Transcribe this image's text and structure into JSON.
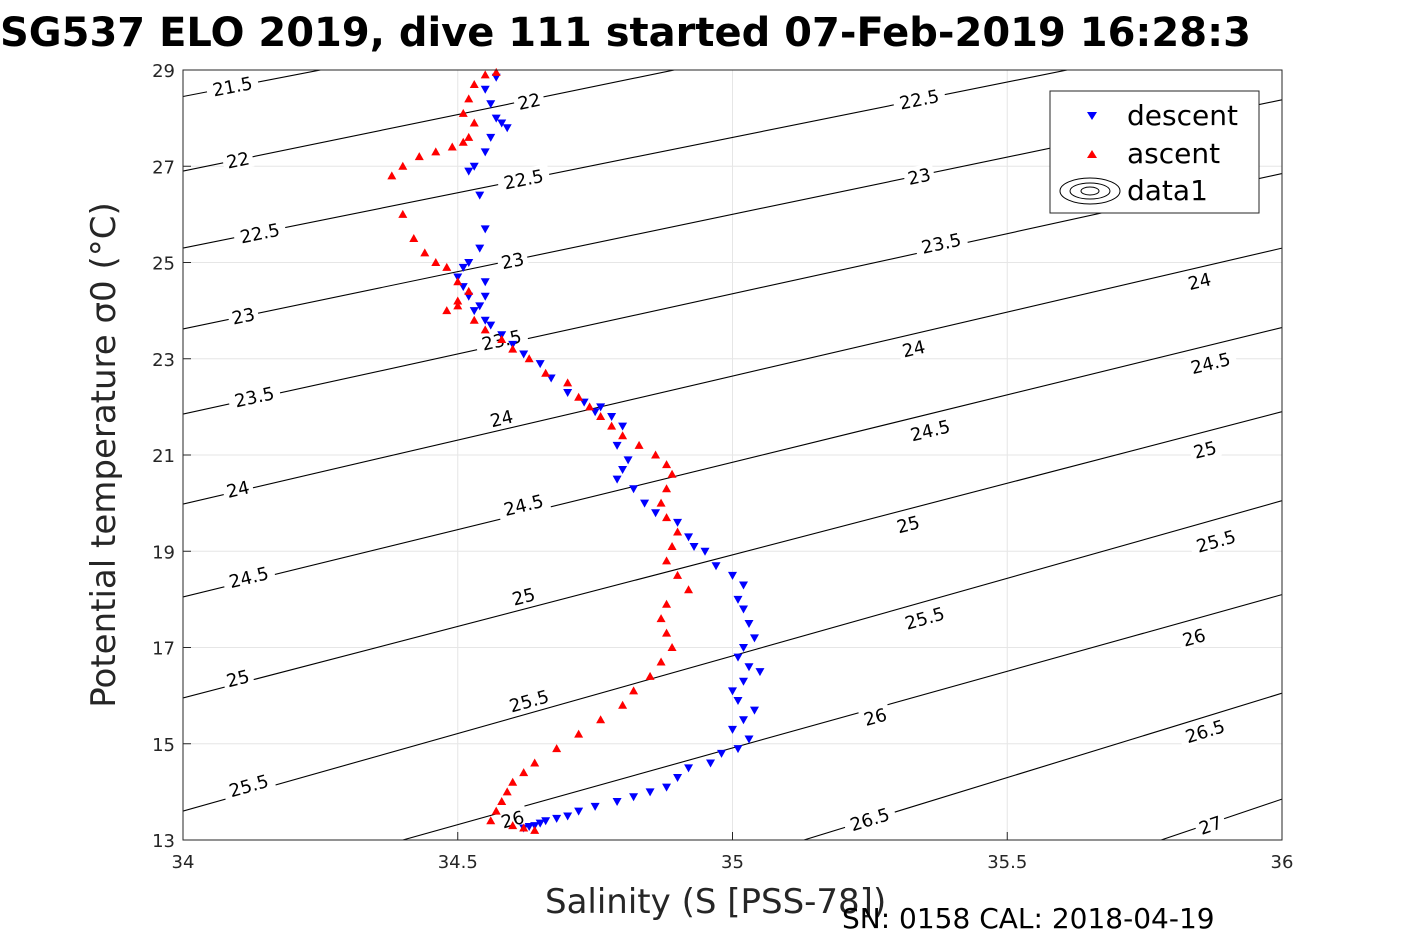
{
  "title": "SG537 ELO 2019, dive 111 started 07-Feb-2019 16:28:3",
  "footer": "SN: 0158  CAL: 2018-04-19",
  "chart_data": {
    "type": "scatter",
    "title": "SG537 ELO 2019, dive 111 started 07-Feb-2019 16:28:3",
    "xlabel": "Salinity (S [PSS-78])",
    "ylabel": "Potential temperature σ0 (°C)",
    "xlim": [
      34,
      36
    ],
    "ylim": [
      13,
      29
    ],
    "xticks": [
      "34",
      "34.5",
      "35",
      "35.5",
      "36"
    ],
    "yticks": [
      "13",
      "15",
      "17",
      "19",
      "21",
      "23",
      "25",
      "27",
      "29"
    ],
    "grid": true,
    "legend_placement": "top-right",
    "legend": [
      "descent",
      "ascent",
      "data1"
    ],
    "colors": {
      "descent": "#0000ff",
      "ascent": "#ff0000",
      "contour": "#000000"
    },
    "contours": [
      {
        "level": "21.5",
        "points": [
          [
            34.0,
            28.45
          ],
          [
            34.5,
            29.55
          ]
        ],
        "labels": [
          {
            "x": 34.09,
            "y": 28.65
          }
        ]
      },
      {
        "level": "22",
        "points": [
          [
            34.0,
            26.9
          ],
          [
            35.0,
            29.25
          ]
        ],
        "labels": [
          {
            "x": 34.1,
            "y": 27.12
          },
          {
            "x": 34.63,
            "y": 28.34
          }
        ]
      },
      {
        "level": "22.5",
        "points": [
          [
            34.0,
            25.3
          ],
          [
            36.0,
            29.9
          ]
        ],
        "labels": [
          {
            "x": 34.14,
            "y": 25.6
          },
          {
            "x": 34.62,
            "y": 26.72
          },
          {
            "x": 35.34,
            "y": 28.38
          }
        ]
      },
      {
        "level": "23",
        "points": [
          [
            34.0,
            23.62
          ],
          [
            36.0,
            28.38
          ]
        ],
        "labels": [
          {
            "x": 34.11,
            "y": 23.88
          },
          {
            "x": 34.6,
            "y": 25.03
          },
          {
            "x": 35.34,
            "y": 26.78
          }
        ]
      },
      {
        "level": "23.5",
        "points": [
          [
            34.0,
            21.85
          ],
          [
            36.0,
            26.85
          ]
        ],
        "labels": [
          {
            "x": 34.13,
            "y": 22.2
          },
          {
            "x": 34.58,
            "y": 23.38
          },
          {
            "x": 35.38,
            "y": 25.39
          }
        ]
      },
      {
        "level": "24",
        "points": [
          [
            34.0,
            19.98
          ],
          [
            36.0,
            25.3
          ]
        ],
        "labels": [
          {
            "x": 34.1,
            "y": 20.28
          },
          {
            "x": 34.58,
            "y": 21.75
          },
          {
            "x": 35.33,
            "y": 23.2
          },
          {
            "x": 35.85,
            "y": 24.6
          }
        ]
      },
      {
        "level": "24.5",
        "points": [
          [
            34.0,
            18.05
          ],
          [
            36.0,
            23.65
          ]
        ],
        "labels": [
          {
            "x": 34.12,
            "y": 18.45
          },
          {
            "x": 34.62,
            "y": 19.95
          },
          {
            "x": 35.36,
            "y": 21.5
          },
          {
            "x": 35.87,
            "y": 22.9
          }
        ]
      },
      {
        "level": "25",
        "points": [
          [
            34.0,
            15.95
          ],
          [
            36.0,
            21.9
          ]
        ],
        "labels": [
          {
            "x": 34.1,
            "y": 16.35
          },
          {
            "x": 34.62,
            "y": 18.05
          },
          {
            "x": 35.32,
            "y": 19.55
          },
          {
            "x": 35.86,
            "y": 21.1
          }
        ]
      },
      {
        "level": "25.5",
        "points": [
          [
            34.0,
            13.6
          ],
          [
            36.0,
            20.05
          ]
        ],
        "labels": [
          {
            "x": 34.12,
            "y": 14.12
          },
          {
            "x": 34.63,
            "y": 15.88
          },
          {
            "x": 35.35,
            "y": 17.6
          },
          {
            "x": 35.88,
            "y": 19.2
          }
        ]
      },
      {
        "level": "26",
        "points": [
          [
            34.4,
            13.0
          ],
          [
            36.0,
            18.1
          ]
        ],
        "labels": [
          {
            "x": 34.6,
            "y": 13.42
          },
          {
            "x": 35.26,
            "y": 15.55
          },
          {
            "x": 35.84,
            "y": 17.2
          }
        ]
      },
      {
        "level": "26.5",
        "points": [
          [
            35.13,
            13.0
          ],
          [
            36.0,
            16.05
          ]
        ],
        "labels": [
          {
            "x": 35.25,
            "y": 13.42
          },
          {
            "x": 35.86,
            "y": 15.25
          }
        ]
      },
      {
        "level": "27",
        "points": [
          [
            35.78,
            13.0
          ],
          [
            36.0,
            13.85
          ]
        ],
        "labels": [
          {
            "x": 35.87,
            "y": 13.3
          }
        ]
      }
    ],
    "series": [
      {
        "name": "descent",
        "marker": "triangle-down",
        "color": "#0000ff",
        "x": [
          34.57,
          34.55,
          34.56,
          34.57,
          34.58,
          34.56,
          34.59,
          34.55,
          34.53,
          34.52,
          34.54,
          34.55,
          34.54,
          34.52,
          34.51,
          34.5,
          34.51,
          34.52,
          34.55,
          34.55,
          34.54,
          34.53,
          34.55,
          34.56,
          34.58,
          34.6,
          34.62,
          34.65,
          34.67,
          34.7,
          34.73,
          34.75,
          34.76,
          34.78,
          34.8,
          34.79,
          34.81,
          34.8,
          34.79,
          34.82,
          34.84,
          34.86,
          34.9,
          34.92,
          34.93,
          34.95,
          34.97,
          35.0,
          35.02,
          35.01,
          35.02,
          35.03,
          35.04,
          35.02,
          35.01,
          35.03,
          35.05,
          35.02,
          35.0,
          35.01,
          35.04,
          35.02,
          35.0,
          35.03,
          35.01,
          34.98,
          34.96,
          34.92,
          34.9,
          34.88,
          34.85,
          34.82,
          34.79,
          34.75,
          34.72,
          34.7,
          34.68,
          34.66,
          34.65,
          34.64,
          34.63,
          34.62
        ],
        "y": [
          28.85,
          28.6,
          28.3,
          28.0,
          27.9,
          27.6,
          27.8,
          27.3,
          27.0,
          26.9,
          26.4,
          25.7,
          25.3,
          25.0,
          24.9,
          24.7,
          24.5,
          24.3,
          24.6,
          24.3,
          24.1,
          24.0,
          23.8,
          23.7,
          23.5,
          23.3,
          23.1,
          22.9,
          22.6,
          22.3,
          22.1,
          21.9,
          22.0,
          21.8,
          21.6,
          21.2,
          20.9,
          20.7,
          20.5,
          20.3,
          20.0,
          19.8,
          19.6,
          19.3,
          19.1,
          19.0,
          18.7,
          18.5,
          18.3,
          18.0,
          17.8,
          17.5,
          17.2,
          17.0,
          16.8,
          16.6,
          16.5,
          16.3,
          16.1,
          15.9,
          15.7,
          15.5,
          15.3,
          15.1,
          14.9,
          14.8,
          14.6,
          14.5,
          14.3,
          14.1,
          14.0,
          13.9,
          13.8,
          13.7,
          13.6,
          13.5,
          13.45,
          13.4,
          13.35,
          13.3,
          13.28,
          13.25
        ]
      },
      {
        "name": "ascent",
        "marker": "triangle-up",
        "color": "#ff0000",
        "x": [
          34.57,
          34.55,
          34.53,
          34.52,
          34.51,
          34.53,
          34.52,
          34.51,
          34.49,
          34.46,
          34.43,
          34.4,
          34.38,
          34.4,
          34.42,
          34.44,
          34.46,
          34.48,
          34.5,
          34.52,
          34.5,
          34.48,
          34.5,
          34.53,
          34.55,
          34.58,
          34.6,
          34.63,
          34.66,
          34.7,
          34.72,
          34.74,
          34.76,
          34.78,
          34.8,
          34.83,
          34.86,
          34.88,
          34.89,
          34.88,
          34.87,
          34.88,
          34.9,
          34.89,
          34.88,
          34.9,
          34.92,
          34.88,
          34.87,
          34.88,
          34.89,
          34.87,
          34.85,
          34.82,
          34.8,
          34.76,
          34.72,
          34.68,
          34.64,
          34.62,
          34.6,
          34.59,
          34.58,
          34.57,
          34.56,
          34.6,
          34.62,
          34.64
        ],
        "y": [
          28.95,
          28.9,
          28.7,
          28.4,
          28.1,
          27.9,
          27.6,
          27.5,
          27.4,
          27.3,
          27.2,
          27.0,
          26.8,
          26.0,
          25.5,
          25.2,
          25.0,
          24.9,
          24.6,
          24.4,
          24.2,
          24.0,
          24.1,
          23.8,
          23.6,
          23.4,
          23.2,
          23.0,
          22.7,
          22.5,
          22.2,
          22.0,
          21.8,
          21.6,
          21.4,
          21.2,
          21.0,
          20.8,
          20.6,
          20.3,
          20.0,
          19.7,
          19.4,
          19.1,
          18.8,
          18.5,
          18.2,
          17.9,
          17.6,
          17.3,
          17.0,
          16.7,
          16.4,
          16.1,
          15.8,
          15.5,
          15.2,
          14.9,
          14.6,
          14.4,
          14.2,
          14.0,
          13.8,
          13.6,
          13.4,
          13.3,
          13.25,
          13.2
        ]
      }
    ]
  }
}
